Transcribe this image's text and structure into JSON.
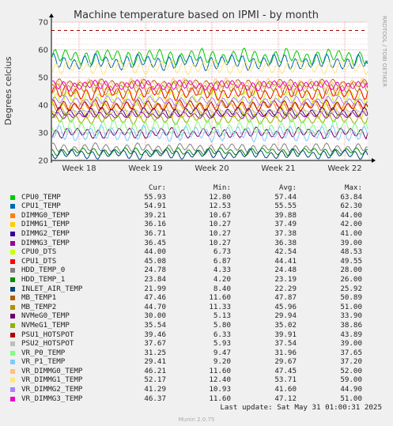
{
  "chart_data": {
    "type": "line",
    "title": "Machine temperature based on IPMI - by month",
    "ylabel": "Degrees celcius",
    "ylim": [
      20,
      70
    ],
    "yticks": [
      "20",
      "30",
      "40",
      "50",
      "60",
      "70"
    ],
    "xticks": [
      "Week 18",
      "Week 19",
      "Week 20",
      "Week 21",
      "Week 22"
    ],
    "grid": true,
    "warning_line": 67,
    "series": [
      {
        "name": "CPU0_TEMP",
        "color": "#00cc00",
        "cur": 55.93,
        "min": 12.8,
        "avg": 57.44,
        "max": 63.84
      },
      {
        "name": "CPU1_TEMP",
        "color": "#0066b3",
        "cur": 54.91,
        "min": 12.53,
        "avg": 55.55,
        "max": 62.3
      },
      {
        "name": "DIMMG0_TEMP",
        "color": "#ff8000",
        "cur": 39.21,
        "min": 10.67,
        "avg": 39.88,
        "max": 44.0
      },
      {
        "name": "DIMMG1_TEMP",
        "color": "#ffcc00",
        "cur": 36.16,
        "min": 10.27,
        "avg": 37.49,
        "max": 42.0
      },
      {
        "name": "DIMMG2_TEMP",
        "color": "#330099",
        "cur": 36.71,
        "min": 10.27,
        "avg": 37.38,
        "max": 41.0
      },
      {
        "name": "DIMMG3_TEMP",
        "color": "#990099",
        "cur": 36.45,
        "min": 10.27,
        "avg": 36.38,
        "max": 39.0
      },
      {
        "name": "CPU0_DTS",
        "color": "#ccff00",
        "cur": 44.0,
        "min": 6.73,
        "avg": 42.54,
        "max": 48.53
      },
      {
        "name": "CPU1_DTS",
        "color": "#ff0000",
        "cur": 45.08,
        "min": 6.87,
        "avg": 44.41,
        "max": 49.55
      },
      {
        "name": "HDD_TEMP_0",
        "color": "#808080",
        "cur": 24.78,
        "min": 4.33,
        "avg": 24.48,
        "max": 28.0
      },
      {
        "name": "HDD_TEMP_1",
        "color": "#008f00",
        "cur": 23.84,
        "min": 4.2,
        "avg": 23.19,
        "max": 26.0
      },
      {
        "name": "INLET_AIR_TEMP",
        "color": "#00487d",
        "cur": 21.99,
        "min": 8.4,
        "avg": 22.29,
        "max": 25.92
      },
      {
        "name": "MB_TEMP1",
        "color": "#b35a00",
        "cur": 47.46,
        "min": 11.6,
        "avg": 47.87,
        "max": 50.89
      },
      {
        "name": "MB_TEMP2",
        "color": "#b38f00",
        "cur": 44.7,
        "min": 11.33,
        "avg": 45.96,
        "max": 51.0
      },
      {
        "name": "NVMeG0_TEMP",
        "color": "#6b006b",
        "cur": 30.0,
        "min": 5.13,
        "avg": 29.94,
        "max": 33.9
      },
      {
        "name": "NVMeG1_TEMP",
        "color": "#8fb300",
        "cur": 35.54,
        "min": 5.8,
        "avg": 35.02,
        "max": 38.86
      },
      {
        "name": "PSU1_HOTSPOT",
        "color": "#b30000",
        "cur": 39.46,
        "min": 6.33,
        "avg": 39.91,
        "max": 43.89
      },
      {
        "name": "PSU2_HOTSPOT",
        "color": "#bebebe",
        "cur": 37.67,
        "min": 5.93,
        "avg": 37.54,
        "max": 39.0
      },
      {
        "name": "VR_P0_TEMP",
        "color": "#80ff80",
        "cur": 31.25,
        "min": 9.47,
        "avg": 31.96,
        "max": 37.65
      },
      {
        "name": "VR_P1_TEMP",
        "color": "#80c9ff",
        "cur": 29.41,
        "min": 9.2,
        "avg": 29.67,
        "max": 37.2
      },
      {
        "name": "VR_DIMMG0_TEMP",
        "color": "#ffc080",
        "cur": 46.21,
        "min": 11.6,
        "avg": 47.45,
        "max": 52.0
      },
      {
        "name": "VR_DIMMG1_TEMP",
        "color": "#ffe680",
        "cur": 52.17,
        "min": 12.4,
        "avg": 53.71,
        "max": 59.0
      },
      {
        "name": "VR_DIMMG2_TEMP",
        "color": "#aa80ff",
        "cur": 41.29,
        "min": 10.93,
        "avg": 41.6,
        "max": 44.9
      },
      {
        "name": "VR_DIMMG3_TEMP",
        "color": "#ee00cc",
        "cur": 46.37,
        "min": 11.6,
        "avg": 47.12,
        "max": 51.0
      }
    ]
  },
  "side_text": "RRDTOOL / TOBI OETIKER",
  "legend_headers": {
    "cur": "Cur:",
    "min": "Min:",
    "avg": "Avg:",
    "max": "Max:"
  },
  "last_update": "Last update: Sat May 31 01:00:31 2025",
  "version": "Munin 2.0.75"
}
